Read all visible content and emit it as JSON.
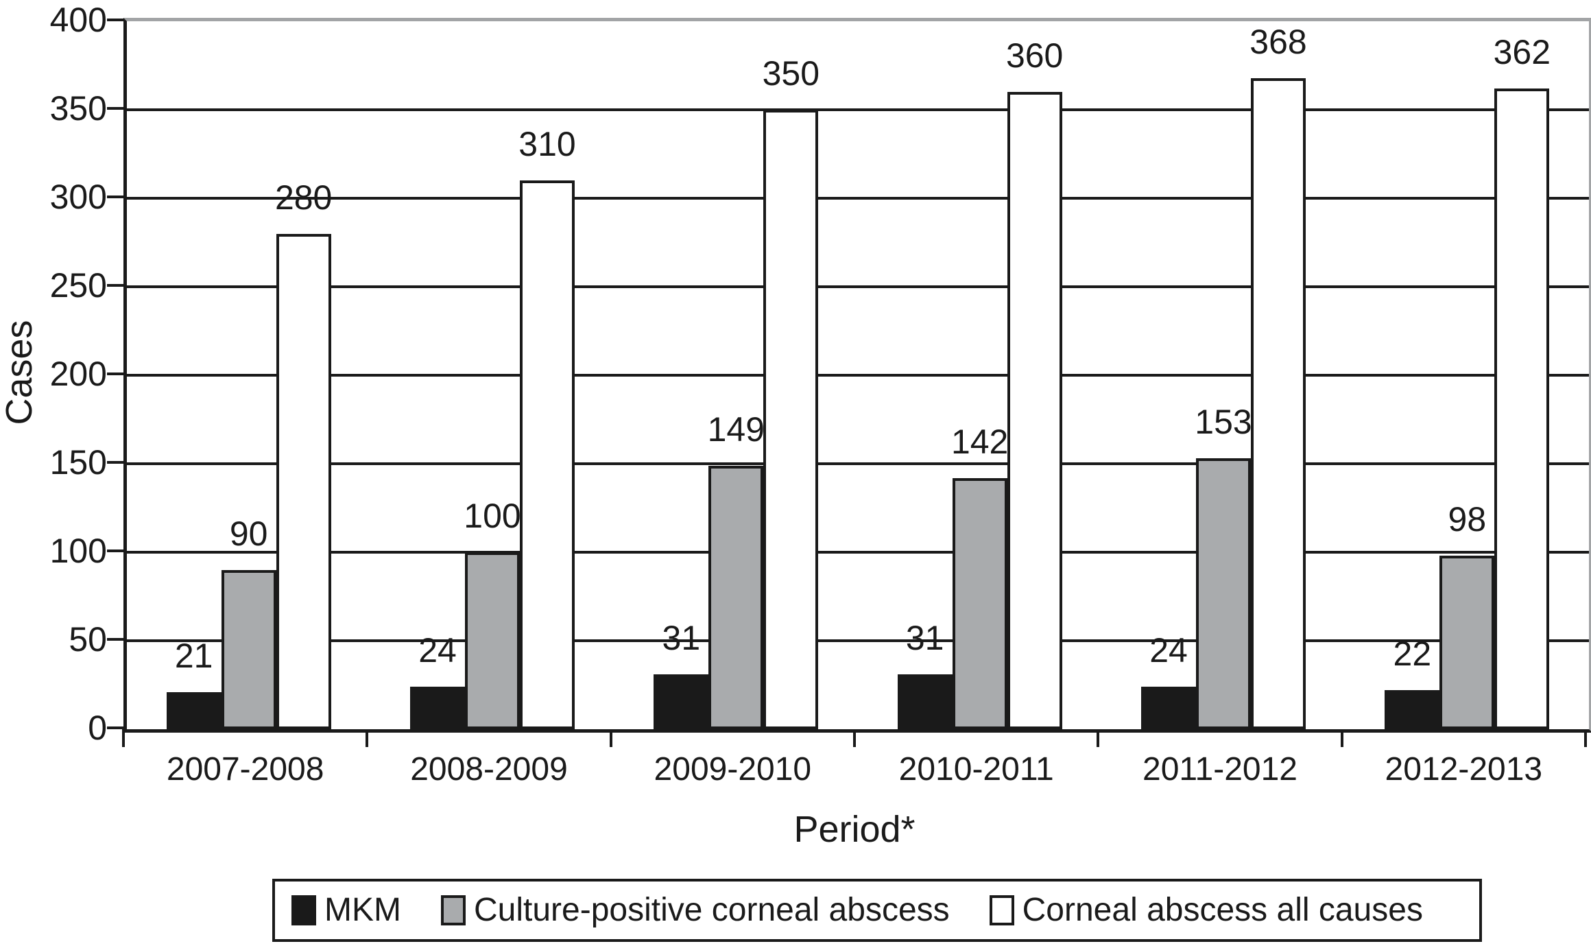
{
  "chart_data": {
    "type": "bar",
    "title": "",
    "xlabel": "Period*",
    "ylabel": "Cases",
    "categories": [
      "2007-2008",
      "2008-2009",
      "2009-2010",
      "2010-2011",
      "2011-2012",
      "2012-2013"
    ],
    "series": [
      {
        "name": "MKM",
        "color": "#1a1a1a",
        "values": [
          21,
          24,
          31,
          31,
          24,
          22
        ]
      },
      {
        "name": "Culture-positive corneal abscess",
        "color": "#a9abad",
        "values": [
          90,
          100,
          149,
          142,
          153,
          98
        ]
      },
      {
        "name": "Corneal abscess all causes",
        "color": "#ffffff",
        "values": [
          280,
          310,
          350,
          360,
          368,
          362
        ]
      }
    ],
    "ylim": [
      0,
      400
    ],
    "ytick_step": 50,
    "ytick_labels": [
      "0",
      "50",
      "100",
      "150",
      "200",
      "250",
      "300",
      "350",
      "400"
    ],
    "grid": true,
    "legend_position": "bottom",
    "colors": {
      "text": "#1a1a1a",
      "gridline": "#1a1a1a",
      "plot_outer_border": "#a2a4a6",
      "bar_black": "#1a1a1a",
      "bar_gray": "#a9abad",
      "bar_white": "#ffffff"
    }
  }
}
